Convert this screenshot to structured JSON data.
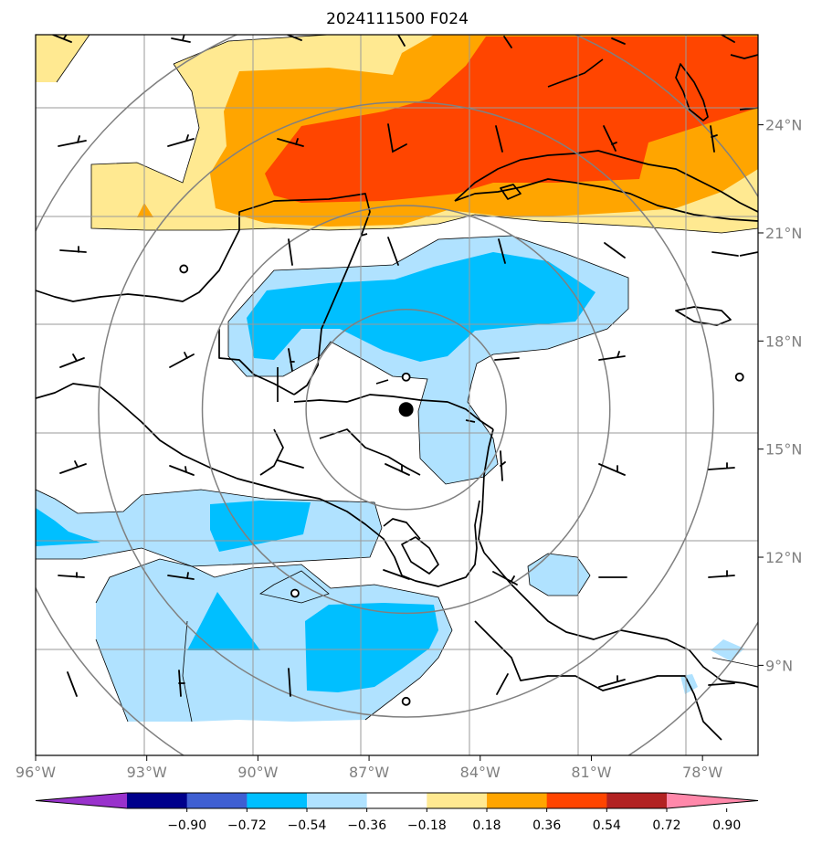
{
  "title": "2024111500 F024",
  "map": {
    "lon_range": [
      -96,
      -76.5
    ],
    "lat_range": [
      6.5,
      26.5
    ],
    "lon_ticks": [
      {
        "lon": -96,
        "label": "96°W"
      },
      {
        "lon": -93,
        "label": "93°W"
      },
      {
        "lon": -90,
        "label": "90°W"
      },
      {
        "lon": -87,
        "label": "87°W"
      },
      {
        "lon": -84,
        "label": "84°W"
      },
      {
        "lon": -81,
        "label": "81°W"
      },
      {
        "lon": -78,
        "label": "78°W"
      }
    ],
    "lat_ticks": [
      {
        "lat": 24,
        "label": "24°N"
      },
      {
        "lat": 21,
        "label": "21°N"
      },
      {
        "lat": 18,
        "label": "18°N"
      },
      {
        "lat": 15,
        "label": "15°N"
      },
      {
        "lat": 12,
        "label": "12°N"
      },
      {
        "lat": 9,
        "label": "9°N"
      }
    ],
    "center": {
      "lon": -86.0,
      "lat": 16.1
    },
    "range_rings_deg": [
      2.7,
      5.5,
      8.3,
      11.1
    ],
    "field_colors": {
      "pos_018_036": "#ffe991",
      "pos_036_054": "#ffa500",
      "pos_054_072": "#ff4500",
      "neg_018_036": "#b0e2ff",
      "neg_036_054": "#00bfff"
    },
    "calm_markers": [
      {
        "lon": -92.0,
        "lat": 20.0
      },
      {
        "lon": -86.0,
        "lat": 17.0
      },
      {
        "lon": -77.0,
        "lat": 17.0
      },
      {
        "lon": -89.0,
        "lat": 11.0
      },
      {
        "lon": -86.0,
        "lat": 8.0
      }
    ]
  },
  "colorbar": {
    "colors": [
      "#9932cc",
      "#00008b",
      "#3f5fd2",
      "#00bfff",
      "#b0e2ff",
      "#ffffff",
      "#ffe991",
      "#ffa500",
      "#ff4500",
      "#b22222",
      "#ff88aa"
    ],
    "labels": [
      "−0.90",
      "−0.72",
      "−0.54",
      "−0.36",
      "−0.18",
      "0.18",
      "0.36",
      "0.54",
      "0.72",
      "0.90"
    ]
  }
}
